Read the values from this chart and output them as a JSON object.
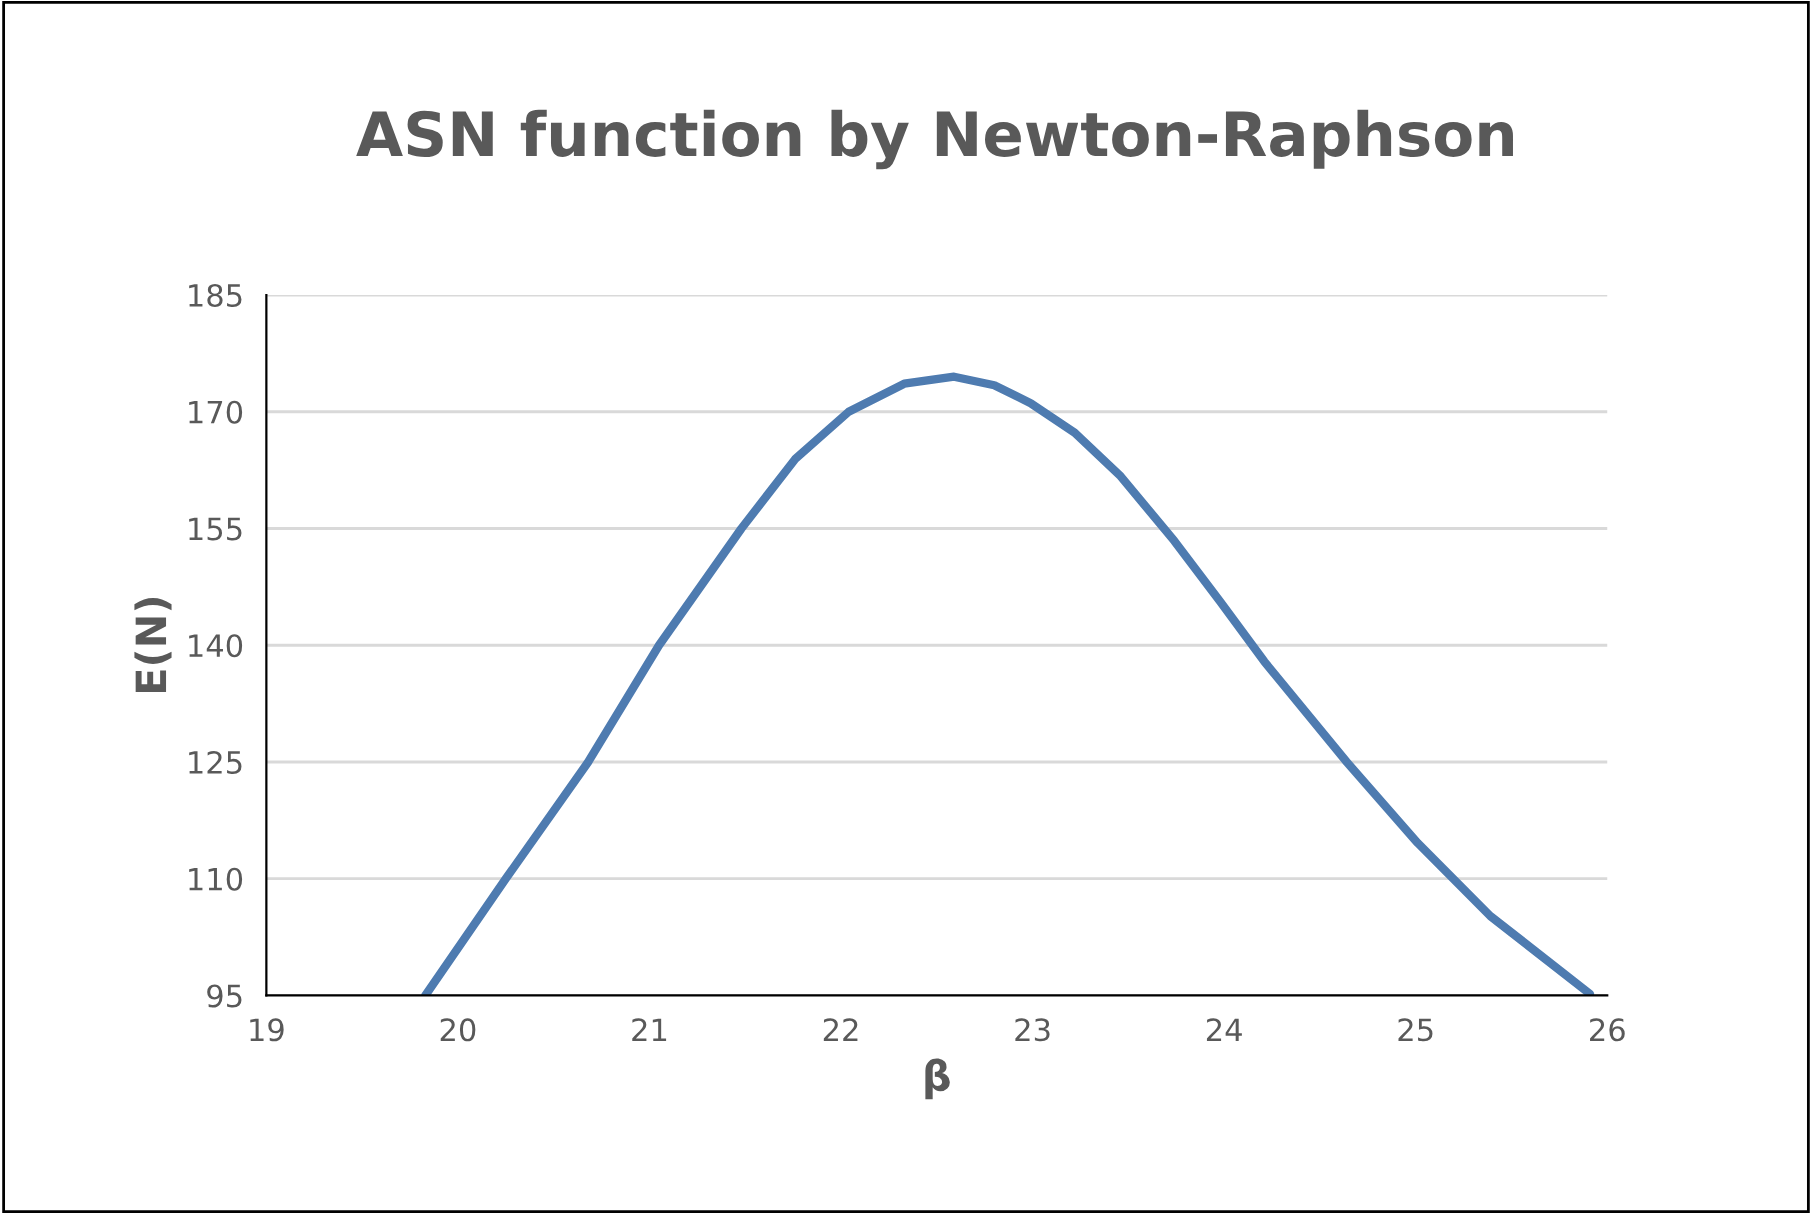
{
  "chart_data": {
    "type": "line",
    "title": "ASN function by Newton-Raphson",
    "xlabel": "β",
    "ylabel": "E(N)",
    "x": [
      19.83,
      20.25,
      20.68,
      21.05,
      21.48,
      21.76,
      22.04,
      22.33,
      22.59,
      22.8,
      22.99,
      23.22,
      23.46,
      23.74,
      23.98,
      24.21,
      24.64,
      25.01,
      25.39,
      25.91
    ],
    "series": [
      {
        "color": "#4e7bb0",
        "values": [
          95,
          110,
          125,
          140,
          155,
          163.9,
          170,
          173.6,
          174.5,
          173.4,
          171.1,
          167.3,
          161.7,
          153.4,
          145.6,
          137.9,
          125,
          114.6,
          105.2,
          95.2
        ]
      }
    ],
    "xlim": [
      19,
      26
    ],
    "xticks": [
      19,
      20,
      21,
      22,
      23,
      24,
      25,
      26
    ],
    "ylim": [
      95,
      185
    ],
    "yticks": [
      95,
      110,
      125,
      140,
      155,
      170,
      185
    ],
    "grid": "y",
    "marker": "none",
    "line_style": "solid"
  }
}
